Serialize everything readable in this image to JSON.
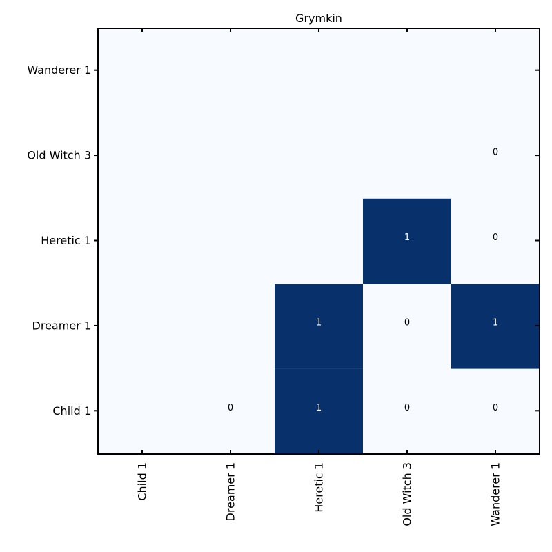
{
  "chart_data": {
    "type": "heatmap",
    "title": "Grymkin",
    "x_categories": [
      "Child 1",
      "Dreamer 1",
      "Heretic 1",
      "Old Witch 3",
      "Wanderer 1"
    ],
    "y_categories": [
      "Child 1",
      "Dreamer 1",
      "Heretic 1",
      "Old Witch 3",
      "Wanderer 1"
    ],
    "cells": [
      {
        "x": "Dreamer 1",
        "y": "Child 1",
        "value": 0
      },
      {
        "x": "Heretic 1",
        "y": "Child 1",
        "value": 1
      },
      {
        "x": "Old Witch 3",
        "y": "Child 1",
        "value": 0
      },
      {
        "x": "Wanderer 1",
        "y": "Child 1",
        "value": 0
      },
      {
        "x": "Heretic 1",
        "y": "Dreamer 1",
        "value": 1
      },
      {
        "x": "Old Witch 3",
        "y": "Dreamer 1",
        "value": 0
      },
      {
        "x": "Wanderer 1",
        "y": "Dreamer 1",
        "value": 1
      },
      {
        "x": "Old Witch 3",
        "y": "Heretic 1",
        "value": 1
      },
      {
        "x": "Wanderer 1",
        "y": "Heretic 1",
        "value": 0
      },
      {
        "x": "Wanderer 1",
        "y": "Old Witch 3",
        "value": 0
      }
    ],
    "value_range": [
      0,
      1
    ],
    "colormap": {
      "low": "#f7fbff",
      "high": "#08306b"
    },
    "label_colors": {
      "on_low": "#000000",
      "on_high": "#ffffff"
    },
    "background_color": "#f7fbff",
    "grid": false
  }
}
